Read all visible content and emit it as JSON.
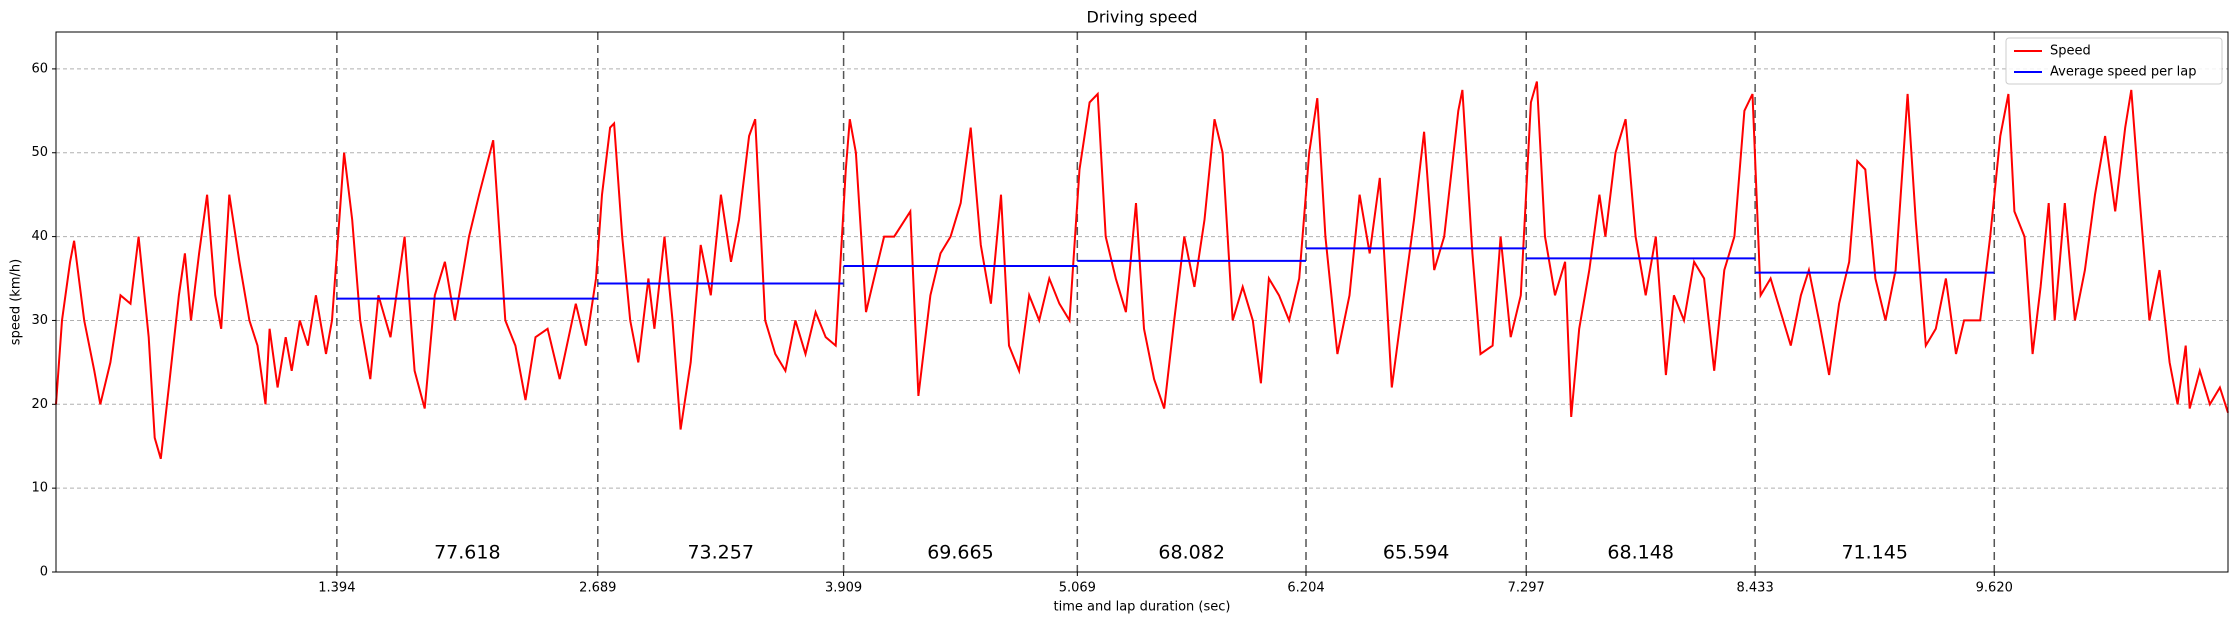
{
  "chart_data": {
    "type": "line",
    "title": "Driving speed",
    "x_label": "time and lap duration (sec)",
    "y_label": "speed (km/h)",
    "xlim": [
      0,
      10.78
    ],
    "ylim": [
      0,
      64.4
    ],
    "xticks": [
      1.394,
      2.689,
      3.909,
      5.069,
      6.204,
      7.297,
      8.433,
      {
        "value": 9.62,
        "label": "9.620"
      }
    ],
    "yticks": [
      0,
      10,
      20,
      30,
      40,
      50,
      60
    ],
    "grid": true,
    "legend": "upper right",
    "series": [
      {
        "name": "Speed",
        "color": "#ff0000",
        "x": [
          0,
          0.03,
          0.07,
          0.09,
          0.14,
          0.19,
          0.22,
          0.27,
          0.32,
          0.37,
          0.41,
          0.46,
          0.49,
          0.52,
          0.56,
          0.61,
          0.64,
          0.67,
          0.71,
          0.75,
          0.79,
          0.82,
          0.86,
          0.91,
          0.96,
          1.0,
          1.04,
          1.06,
          1.1,
          1.14,
          1.17,
          1.21,
          1.25,
          1.29,
          1.34,
          1.37,
          1.4,
          1.43,
          1.47,
          1.51,
          1.56,
          1.6,
          1.66,
          1.73,
          1.78,
          1.83,
          1.88,
          1.93,
          1.98,
          2.05,
          2.1,
          2.17,
          2.23,
          2.28,
          2.33,
          2.38,
          2.44,
          2.5,
          2.58,
          2.63,
          2.68,
          2.71,
          2.75,
          2.77,
          2.81,
          2.85,
          2.89,
          2.94,
          2.97,
          3.02,
          3.06,
          3.1,
          3.15,
          3.2,
          3.25,
          3.3,
          3.35,
          3.39,
          3.44,
          3.47,
          3.52,
          3.57,
          3.62,
          3.67,
          3.72,
          3.77,
          3.82,
          3.87,
          3.92,
          3.94,
          3.97,
          4.02,
          4.06,
          4.11,
          4.16,
          4.24,
          4.28,
          4.34,
          4.39,
          4.44,
          4.49,
          4.54,
          4.59,
          4.64,
          4.69,
          4.73,
          4.78,
          4.83,
          4.88,
          4.93,
          4.98,
          5.03,
          5.08,
          5.13,
          5.17,
          5.21,
          5.26,
          5.31,
          5.36,
          5.4,
          5.45,
          5.5,
          5.55,
          5.6,
          5.65,
          5.7,
          5.75,
          5.79,
          5.84,
          5.89,
          5.94,
          5.98,
          6.02,
          6.07,
          6.12,
          6.17,
          6.22,
          6.26,
          6.3,
          6.36,
          6.42,
          6.47,
          6.52,
          6.57,
          6.63,
          6.69,
          6.74,
          6.79,
          6.84,
          6.89,
          6.96,
          6.98,
          7.03,
          7.07,
          7.13,
          7.17,
          7.22,
          7.27,
          7.32,
          7.35,
          7.39,
          7.44,
          7.49,
          7.52,
          7.56,
          7.61,
          7.66,
          7.69,
          7.74,
          7.79,
          7.84,
          7.89,
          7.94,
          7.99,
          8.03,
          8.08,
          8.13,
          8.18,
          8.23,
          8.28,
          8.33,
          8.38,
          8.42,
          8.46,
          8.51,
          8.56,
          8.61,
          8.66,
          8.7,
          8.75,
          8.8,
          8.85,
          8.9,
          8.94,
          8.98,
          9.03,
          9.08,
          9.13,
          9.19,
          9.23,
          9.28,
          9.33,
          9.38,
          9.43,
          9.47,
          9.55,
          9.6,
          9.65,
          9.69,
          9.72,
          9.77,
          9.81,
          9.85,
          9.89,
          9.92,
          9.97,
          10.02,
          10.07,
          10.12,
          10.17,
          10.22,
          10.27,
          10.3,
          10.34,
          10.39,
          10.44,
          10.49,
          10.53,
          10.57,
          10.59,
          10.64,
          10.69,
          10.74,
          10.78
        ],
        "values": [
          20,
          30,
          37,
          39.5,
          30,
          24,
          20,
          25,
          33,
          32,
          40,
          28,
          16,
          13.5,
          22,
          33,
          38,
          30,
          38,
          45,
          33,
          29,
          45,
          37,
          30,
          27,
          20,
          29,
          22,
          28,
          24,
          30,
          27,
          33,
          26,
          30,
          40,
          50,
          42,
          30,
          23,
          33,
          28,
          40,
          24,
          19.5,
          33,
          37,
          30,
          40,
          45,
          51.5,
          30,
          27,
          20.5,
          28,
          29,
          23,
          32,
          27,
          35,
          45,
          53,
          53.5,
          40,
          30,
          25,
          35,
          29,
          40,
          30,
          17,
          25,
          39,
          33,
          45,
          37,
          42,
          52,
          54,
          30,
          26,
          24,
          30,
          26,
          31,
          28,
          27,
          48,
          54,
          50,
          31,
          35,
          40,
          40,
          43,
          21,
          33,
          38,
          40,
          44,
          53,
          39,
          32,
          45,
          27,
          24,
          33,
          30,
          35,
          32,
          30,
          48,
          56,
          57,
          40,
          35,
          31,
          44,
          29,
          23,
          19.5,
          30,
          40,
          34,
          42,
          54,
          50,
          30,
          34,
          30,
          22.5,
          35,
          33,
          30,
          35,
          50,
          56.5,
          40,
          26,
          33,
          45,
          38,
          47,
          22,
          33,
          42,
          52.5,
          36,
          40,
          55,
          57.5,
          38,
          26,
          27,
          40,
          28,
          33,
          56,
          58.5,
          40,
          33,
          37,
          18.5,
          29,
          36,
          45,
          40,
          50,
          54,
          40,
          33,
          40,
          23.5,
          33,
          30,
          37,
          35,
          24,
          36,
          40,
          55,
          57,
          33,
          35,
          31,
          27,
          33,
          36,
          30,
          23.5,
          32,
          37,
          49,
          48,
          35,
          30,
          36,
          57,
          42,
          27,
          29,
          35,
          26,
          30,
          30,
          40,
          52,
          57,
          43,
          40,
          26,
          34,
          44,
          30,
          44,
          30,
          36,
          45,
          52,
          43,
          53,
          57.5,
          45,
          30,
          36,
          25,
          20,
          27,
          19.5,
          24,
          20,
          22,
          19
        ]
      },
      {
        "name": "Average speed per lap",
        "color": "#0000ff",
        "values": [
          32.6,
          34.4,
          36.5,
          37.1,
          38.6,
          37.4,
          35.7
        ]
      }
    ],
    "lap_durations": [
      77.618,
      73.257,
      69.665,
      68.082,
      65.594,
      68.148,
      71.145
    ]
  }
}
